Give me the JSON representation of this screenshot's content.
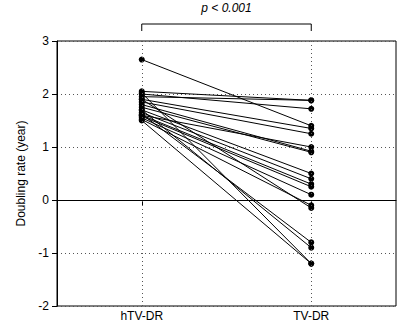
{
  "chart_data": {
    "type": "line",
    "categories": [
      "hTV-DR",
      "TV-DR"
    ],
    "ylabel": "Doubling rate (year)",
    "ylim": [
      -2,
      3
    ],
    "yticks": [
      -2,
      -1,
      0,
      1,
      2,
      3
    ],
    "grid": true,
    "color": "#000000",
    "marker": "circle",
    "annotation": "p < 0.001",
    "series": [
      {
        "values": [
          2.65,
          1.4
        ]
      },
      {
        "values": [
          2.05,
          1.88
        ]
      },
      {
        "values": [
          1.95,
          1.88
        ]
      },
      {
        "values": [
          2.0,
          1.72
        ]
      },
      {
        "values": [
          1.9,
          1.35
        ]
      },
      {
        "values": [
          1.85,
          1.25
        ]
      },
      {
        "values": [
          1.8,
          0.92
        ]
      },
      {
        "values": [
          1.75,
          0.9
        ]
      },
      {
        "values": [
          1.7,
          0.5
        ]
      },
      {
        "values": [
          1.65,
          0.4
        ]
      },
      {
        "values": [
          1.6,
          0.3
        ]
      },
      {
        "values": [
          1.58,
          0.25
        ]
      },
      {
        "values": [
          1.55,
          0.1
        ]
      },
      {
        "values": [
          1.52,
          -0.1
        ]
      },
      {
        "values": [
          1.9,
          -0.15
        ]
      },
      {
        "values": [
          1.62,
          -0.8
        ]
      },
      {
        "values": [
          1.7,
          -0.9
        ]
      },
      {
        "values": [
          1.5,
          -1.2
        ]
      },
      {
        "values": [
          2.02,
          -1.2
        ]
      },
      {
        "values": [
          1.6,
          1.0
        ]
      }
    ]
  }
}
